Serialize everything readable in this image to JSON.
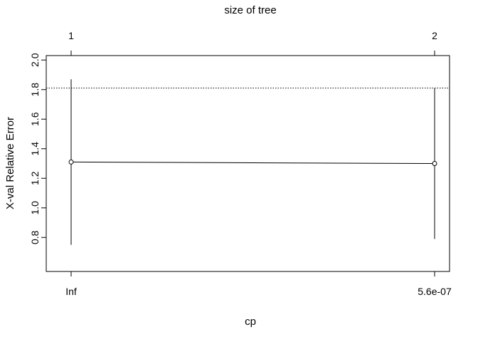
{
  "chart_data": {
    "type": "line",
    "title": "",
    "top_axis_label": "size of tree",
    "xlabel": "cp",
    "ylabel": "X-val Relative Error",
    "categories": [
      "Inf",
      "5.6e-07"
    ],
    "tree_sizes": [
      "1",
      "2"
    ],
    "ylim": [
      0.57,
      2.03
    ],
    "yticks": [
      "0.8",
      "1.0",
      "1.2",
      "1.4",
      "1.6",
      "1.8",
      "2.0"
    ],
    "series": [
      {
        "values": [
          1.31,
          1.3
        ],
        "error_low": [
          0.75,
          0.79
        ],
        "error_high": [
          1.87,
          1.81
        ]
      }
    ],
    "reference_line": {
      "value": 1.81,
      "style": "dotted"
    },
    "grid": false,
    "legend": "none"
  }
}
